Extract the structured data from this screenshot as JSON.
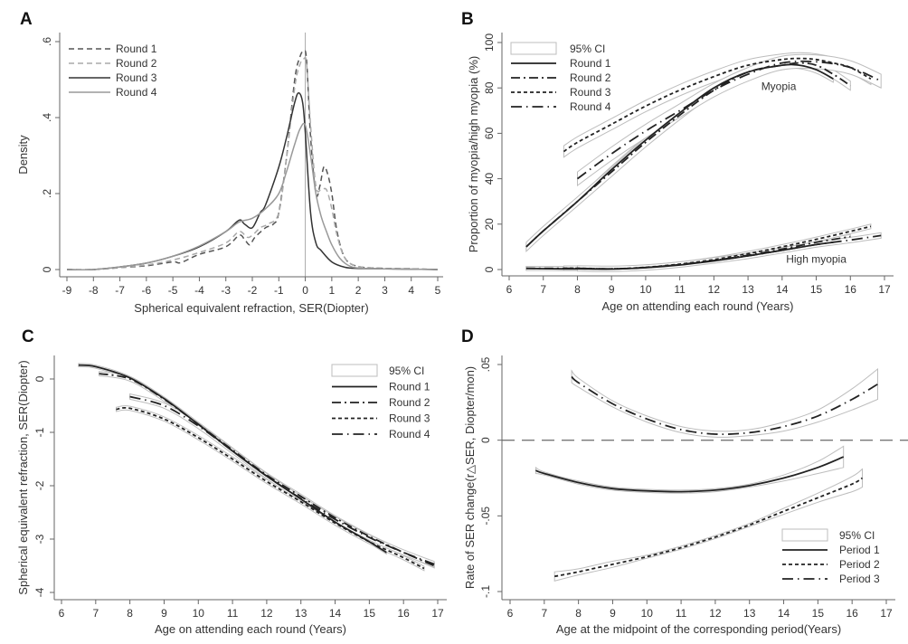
{
  "chart_data": [
    {
      "panel": "A",
      "type": "line",
      "title": "",
      "xlabel": "Spherical equivalent refraction, SER(Diopter)",
      "ylabel": "Density",
      "xlim": [
        -9,
        5
      ],
      "ylim": [
        0,
        0.6
      ],
      "xticks": [
        -9,
        -8,
        -7,
        -6,
        -5,
        -4,
        -3,
        -2,
        -1,
        0,
        1,
        2,
        3,
        4,
        5
      ],
      "xtick_labels": [
        "-9",
        "-8",
        "-7",
        "-6",
        "-5",
        "-4",
        "-3",
        "-2",
        "-1",
        "0",
        "1",
        "2",
        "3",
        "4",
        "5"
      ],
      "yticks": [
        0,
        0.2,
        0.4,
        0.6
      ],
      "ytick_labels": [
        "0",
        ".2",
        ".4",
        ".6"
      ],
      "grid": false,
      "reference_line_x": 0,
      "legend_position": "top-left",
      "series": [
        {
          "name": "Round 1",
          "style": "dashed",
          "color": "#555555",
          "x": [
            -9,
            -8,
            -7,
            -6,
            -5,
            -4.7,
            -4,
            -3,
            -2.5,
            -2.3,
            -2.1,
            -1.9,
            -1.5,
            -1.2,
            -1,
            -0.7,
            -0.4,
            -0.2,
            -0.05,
            0.05,
            0.2,
            0.4,
            0.55,
            0.7,
            0.85,
            1,
            1.2,
            1.5,
            2,
            3,
            4,
            5
          ],
          "y": [
            0,
            0,
            0.005,
            0.01,
            0.02,
            0.018,
            0.04,
            0.06,
            0.09,
            0.08,
            0.065,
            0.085,
            0.11,
            0.12,
            0.15,
            0.3,
            0.5,
            0.56,
            0.575,
            0.55,
            0.35,
            0.2,
            0.22,
            0.27,
            0.25,
            0.2,
            0.1,
            0.03,
            0.008,
            0.003,
            0.002,
            0
          ]
        },
        {
          "name": "Round 2",
          "style": "dashed",
          "color": "#aaaaaa",
          "x": [
            -9,
            -8,
            -7,
            -6,
            -5,
            -4,
            -3,
            -2.5,
            -2.2,
            -2,
            -1.7,
            -1.4,
            -1,
            -0.7,
            -0.4,
            -0.2,
            -0.05,
            0.05,
            0.2,
            0.4,
            0.6,
            0.8,
            1,
            1.2,
            1.5,
            2,
            3,
            4,
            5
          ],
          "y": [
            0,
            0,
            0.005,
            0.012,
            0.025,
            0.045,
            0.07,
            0.1,
            0.085,
            0.09,
            0.11,
            0.12,
            0.15,
            0.3,
            0.48,
            0.54,
            0.555,
            0.54,
            0.38,
            0.22,
            0.21,
            0.21,
            0.16,
            0.09,
            0.03,
            0.008,
            0.003,
            0.002,
            0
          ]
        },
        {
          "name": "Round 3",
          "style": "solid",
          "color": "#333333",
          "x": [
            -9,
            -8,
            -7,
            -6,
            -5,
            -4,
            -3,
            -2.5,
            -2.3,
            -2,
            -1.7,
            -1.5,
            -1,
            -0.7,
            -0.4,
            -0.25,
            -0.1,
            0,
            0.2,
            0.4,
            0.6,
            1,
            1.5,
            2,
            3,
            4,
            5
          ],
          "y": [
            0,
            0,
            0.007,
            0.017,
            0.035,
            0.06,
            0.1,
            0.13,
            0.12,
            0.11,
            0.15,
            0.17,
            0.27,
            0.35,
            0.44,
            0.465,
            0.44,
            0.36,
            0.15,
            0.07,
            0.05,
            0.02,
            0.006,
            0.003,
            0.002,
            0.001,
            0
          ]
        },
        {
          "name": "Round 4",
          "style": "solid",
          "color": "#999999",
          "x": [
            -9,
            -8,
            -7,
            -6,
            -5,
            -4,
            -3,
            -2.5,
            -2,
            -1.5,
            -1,
            -0.7,
            -0.4,
            -0.2,
            0,
            0.2,
            0.4,
            0.6,
            0.8,
            1,
            1.3,
            1.6,
            2,
            3,
            4,
            5
          ],
          "y": [
            0,
            0,
            0.007,
            0.017,
            0.035,
            0.062,
            0.1,
            0.125,
            0.135,
            0.16,
            0.2,
            0.26,
            0.33,
            0.37,
            0.38,
            0.3,
            0.2,
            0.14,
            0.1,
            0.065,
            0.03,
            0.012,
            0.004,
            0.002,
            0.001,
            0
          ]
        }
      ]
    },
    {
      "panel": "B",
      "type": "line",
      "title": "",
      "xlabel": "Age on attending each round (Years)",
      "ylabel": "Proportion of myopia/high myopia (%)",
      "xlim": [
        6,
        17
      ],
      "ylim": [
        0,
        100
      ],
      "xticks": [
        6,
        7,
        8,
        9,
        10,
        11,
        12,
        13,
        14,
        15,
        16,
        17
      ],
      "xtick_labels": [
        "6",
        "7",
        "8",
        "9",
        "10",
        "11",
        "12",
        "13",
        "14",
        "15",
        "16",
        "17"
      ],
      "yticks": [
        0,
        20,
        40,
        60,
        80,
        100
      ],
      "ytick_labels": [
        "0",
        "20",
        "40",
        "60",
        "80",
        "100"
      ],
      "grid": false,
      "legend_position": "top-left",
      "annotations": [
        {
          "text": "Myopia",
          "x": 13.9,
          "y": 79
        },
        {
          "text": "High myopia",
          "x": 15.0,
          "y": 3
        }
      ],
      "series": [
        {
          "name": "Round 1",
          "group": "Myopia",
          "style": "solid",
          "x": [
            6.5,
            7,
            8,
            9,
            10,
            11,
            12,
            13,
            14,
            14.5,
            15,
            15.5
          ],
          "y": [
            10,
            17,
            30,
            44,
            57,
            69,
            80,
            87,
            90,
            90,
            88,
            84
          ],
          "ci_halfwidth": 1.5
        },
        {
          "name": "Round 2",
          "group": "Myopia",
          "style": "dash-dot",
          "x": [
            6.5,
            7,
            8,
            9,
            10,
            11,
            12,
            13,
            14,
            14.5,
            15,
            15.5,
            16
          ],
          "y": [
            10,
            17,
            30,
            43,
            56,
            68,
            79,
            87,
            90,
            91,
            90,
            86,
            81
          ],
          "ci_halfwidth": 2
        },
        {
          "name": "Round 3",
          "group": "Myopia",
          "style": "short-dash",
          "x": [
            7.6,
            8,
            9,
            10,
            11,
            12,
            13,
            14,
            14.5,
            15,
            15.5,
            16,
            16.6
          ],
          "y": [
            52,
            56,
            64,
            72,
            79,
            85,
            90,
            92.5,
            93,
            92.5,
            91,
            89,
            84
          ],
          "ci_halfwidth": 2.5
        },
        {
          "name": "Round 4",
          "group": "Myopia",
          "style": "long-dash-dot",
          "x": [
            8,
            9,
            10,
            11,
            12,
            13,
            14,
            15,
            16,
            16.9
          ],
          "y": [
            40,
            51,
            61,
            70,
            79,
            86,
            91,
            91.5,
            89,
            83
          ],
          "ci_halfwidth": 3
        },
        {
          "name": "Round 1",
          "group": "High myopia",
          "style": "solid",
          "x": [
            6.5,
            7,
            8,
            9,
            10,
            11,
            12,
            13,
            14,
            15,
            15.5
          ],
          "y": [
            0.5,
            0.4,
            0.3,
            0.2,
            0.8,
            2,
            3.8,
            6,
            8.5,
            11,
            12
          ],
          "ci_halfwidth": 0.8
        },
        {
          "name": "Round 2",
          "group": "High myopia",
          "style": "dash-dot",
          "x": [
            6.5,
            7,
            8,
            9,
            10,
            11,
            12,
            13,
            14,
            15,
            16
          ],
          "y": [
            0.5,
            0.5,
            0.5,
            0.3,
            0.9,
            2.2,
            4,
            6.3,
            9,
            12,
            14.5
          ],
          "ci_halfwidth": 0.9
        },
        {
          "name": "Round 3",
          "group": "High myopia",
          "style": "short-dash",
          "x": [
            7.6,
            8,
            9,
            10,
            11,
            12,
            13,
            14,
            15,
            16,
            16.6
          ],
          "y": [
            0.6,
            0.6,
            0.3,
            1,
            2.4,
            4.4,
            7,
            10,
            13.3,
            16.8,
            19
          ],
          "ci_halfwidth": 1
        },
        {
          "name": "Round 4",
          "group": "High myopia",
          "style": "long-dash-dot",
          "x": [
            8,
            9,
            10,
            11,
            12,
            13,
            14,
            15,
            16,
            16.9
          ],
          "y": [
            0.5,
            0.3,
            0.9,
            2.2,
            4,
            6,
            8.5,
            11,
            13,
            15
          ],
          "ci_halfwidth": 1.2
        }
      ]
    },
    {
      "panel": "C",
      "type": "line",
      "title": "",
      "xlabel": "Age on attending each round (Years)",
      "ylabel": "Spherical equivalent refraction, SER(Diopter)",
      "xlim": [
        6,
        17
      ],
      "ylim": [
        -4,
        0.3
      ],
      "xticks": [
        6,
        7,
        8,
        9,
        10,
        11,
        12,
        13,
        14,
        15,
        16,
        17
      ],
      "xtick_labels": [
        "6",
        "7",
        "8",
        "9",
        "10",
        "11",
        "12",
        "13",
        "14",
        "15",
        "16",
        "17"
      ],
      "yticks": [
        0,
        -1,
        -2,
        -3,
        -4
      ],
      "ytick_labels": [
        "0",
        "-1",
        "-2",
        "-3",
        "-4"
      ],
      "grid": false,
      "legend_position": "top-right",
      "series": [
        {
          "name": "Round 1",
          "style": "solid",
          "x": [
            6.5,
            7,
            8,
            9,
            10,
            11,
            12,
            13,
            14,
            15,
            15.5
          ],
          "y": [
            0.26,
            0.23,
            0.02,
            -0.37,
            -0.85,
            -1.35,
            -1.82,
            -2.25,
            -2.68,
            -3.05,
            -3.25
          ],
          "ci_halfwidth": 0.03
        },
        {
          "name": "Round 2",
          "style": "dash-dot",
          "x": [
            7.1,
            8,
            9,
            10,
            11,
            12,
            13,
            14,
            15,
            16,
            16.9
          ],
          "y": [
            0.1,
            0.0,
            -0.38,
            -0.85,
            -1.33,
            -1.8,
            -2.2,
            -2.6,
            -2.95,
            -3.25,
            -3.5
          ],
          "ci_halfwidth": 0.04
        },
        {
          "name": "Round 3",
          "style": "short-dash",
          "x": [
            7.6,
            8,
            9,
            10,
            11,
            12,
            13,
            14,
            15,
            16,
            16.6
          ],
          "y": [
            -0.57,
            -0.55,
            -0.75,
            -1.1,
            -1.5,
            -1.92,
            -2.3,
            -2.7,
            -3.05,
            -3.35,
            -3.55
          ],
          "ci_halfwidth": 0.04
        },
        {
          "name": "Round 4",
          "style": "long-dash-dot",
          "x": [
            8,
            9,
            10,
            11,
            12,
            13,
            14,
            15,
            16,
            16.9
          ],
          "y": [
            -0.33,
            -0.5,
            -0.88,
            -1.35,
            -1.82,
            -2.24,
            -2.63,
            -2.97,
            -3.25,
            -3.47
          ],
          "ci_halfwidth": 0.05
        }
      ]
    },
    {
      "panel": "D",
      "type": "line",
      "title": "",
      "xlabel": "Age at the midpoint of the corresponding period(Years)",
      "ylabel": "Rate of SER change(r△SER, Diopter/mon)",
      "xlim": [
        6,
        17
      ],
      "ylim": [
        -0.1,
        0.05
      ],
      "xticks": [
        6,
        7,
        8,
        9,
        10,
        11,
        12,
        13,
        14,
        15,
        16,
        17
      ],
      "xtick_labels": [
        "6",
        "7",
        "8",
        "9",
        "10",
        "11",
        "12",
        "13",
        "14",
        "15",
        "16",
        "17"
      ],
      "yticks": [
        0.05,
        0,
        -0.05,
        -0.1
      ],
      "ytick_labels": [
        ".05",
        "0",
        "-.05",
        "-.1"
      ],
      "grid": false,
      "reference_line_y": 0,
      "legend_position": "bottom-right",
      "series": [
        {
          "name": "Period 1",
          "style": "solid",
          "x": [
            6.75,
            7,
            8,
            9,
            10,
            11,
            12,
            13,
            14,
            15,
            15.75
          ],
          "y": [
            -0.02,
            -0.022,
            -0.028,
            -0.032,
            -0.0335,
            -0.034,
            -0.033,
            -0.03,
            -0.025,
            -0.018,
            -0.011
          ],
          "ci_halfwidth": [
            0.002,
            0.001,
            0.001,
            0.001,
            0.001,
            0.001,
            0.001,
            0.001,
            0.002,
            0.004,
            0.007
          ]
        },
        {
          "name": "Period 2",
          "style": "short-dash",
          "x": [
            7.3,
            8,
            9,
            10,
            11,
            12,
            13,
            14,
            15,
            16,
            16.3
          ],
          "y": [
            -0.09,
            -0.087,
            -0.082,
            -0.077,
            -0.071,
            -0.064,
            -0.056,
            -0.047,
            -0.038,
            -0.029,
            -0.025
          ],
          "ci_halfwidth": [
            0.003,
            0.002,
            0.002,
            0.001,
            0.001,
            0.001,
            0.001,
            0.002,
            0.003,
            0.005,
            0.006
          ]
        },
        {
          "name": "Period 3",
          "style": "long-dash-dot",
          "x": [
            7.8,
            8,
            9,
            10,
            11,
            12,
            13,
            14,
            15,
            16,
            16.75
          ],
          "y": [
            0.042,
            0.038,
            0.024,
            0.014,
            0.007,
            0.004,
            0.005,
            0.009,
            0.016,
            0.027,
            0.037
          ],
          "ci_halfwidth": [
            0.004,
            0.003,
            0.002,
            0.002,
            0.002,
            0.002,
            0.002,
            0.003,
            0.004,
            0.007,
            0.01
          ]
        }
      ]
    }
  ],
  "panels": {
    "A": {
      "letter": "A",
      "legend": [
        "Round 1",
        "Round 2",
        "Round 3",
        "Round 4"
      ]
    },
    "B": {
      "letter": "B",
      "legend": [
        "95% CI",
        "Round 1",
        "Round 2",
        "Round 3",
        "Round 4"
      ]
    },
    "C": {
      "letter": "C",
      "legend": [
        "95% CI",
        "Round 1",
        "Round 2",
        "Round 3",
        "Round 4"
      ]
    },
    "D": {
      "letter": "D",
      "legend": [
        "95% CI",
        "Period 1",
        "Period 2",
        "Period 3"
      ]
    }
  }
}
